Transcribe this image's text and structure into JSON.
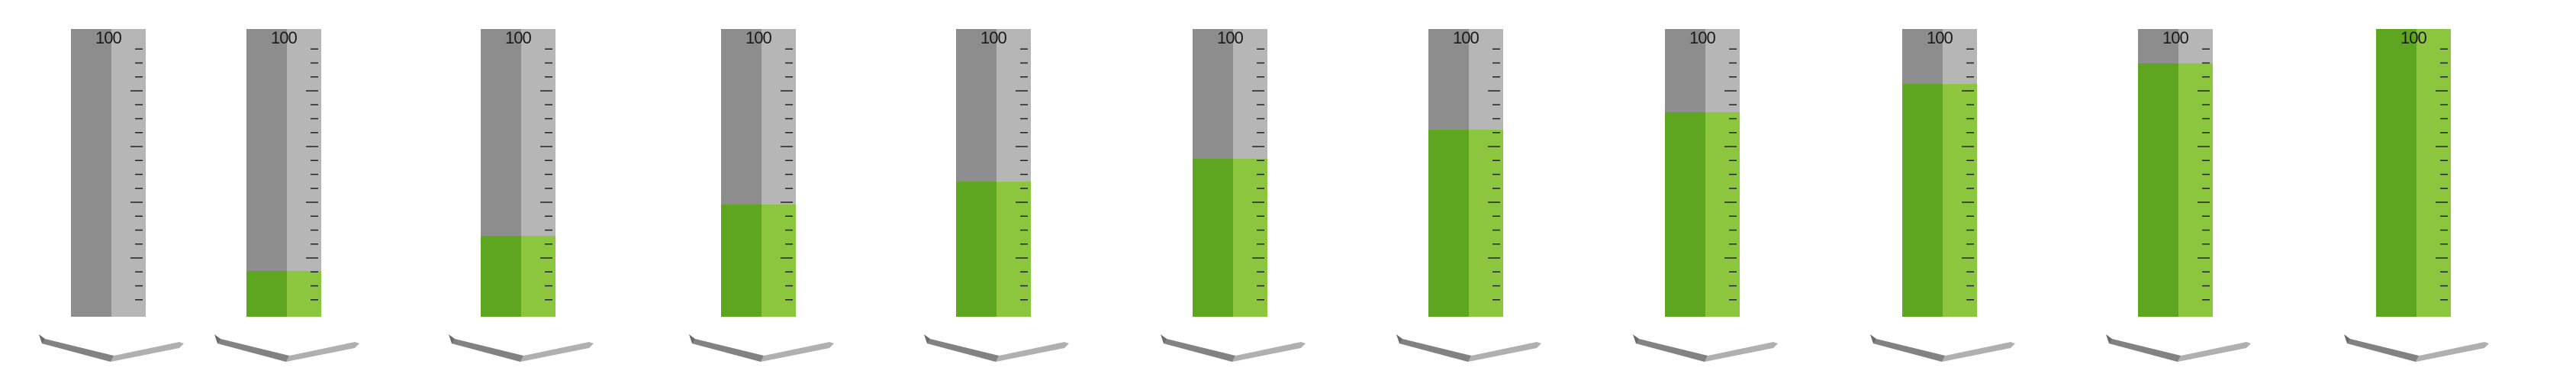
{
  "gauges": [
    {
      "label": "100",
      "level": 0.0
    },
    {
      "label": "100",
      "level": 0.16
    },
    {
      "label": "100",
      "level": 0.28
    },
    {
      "label": "100",
      "level": 0.39
    },
    {
      "label": "100",
      "level": 0.47
    },
    {
      "label": "100",
      "level": 0.55
    },
    {
      "label": "100",
      "level": 0.65
    },
    {
      "label": "100",
      "level": 0.71
    },
    {
      "label": "100",
      "level": 0.81
    },
    {
      "label": "100",
      "level": 0.88
    },
    {
      "label": "100",
      "level": 1.0
    }
  ],
  "colors": {
    "tube_dark": "#8d8d8d",
    "tube_light": "#b6b6b6",
    "fill_dark": "#5ea520",
    "fill_light": "#8cc63f",
    "tick": "#222222",
    "base_dark": "#6a6a6a",
    "base_light": "#b0b0b0"
  }
}
